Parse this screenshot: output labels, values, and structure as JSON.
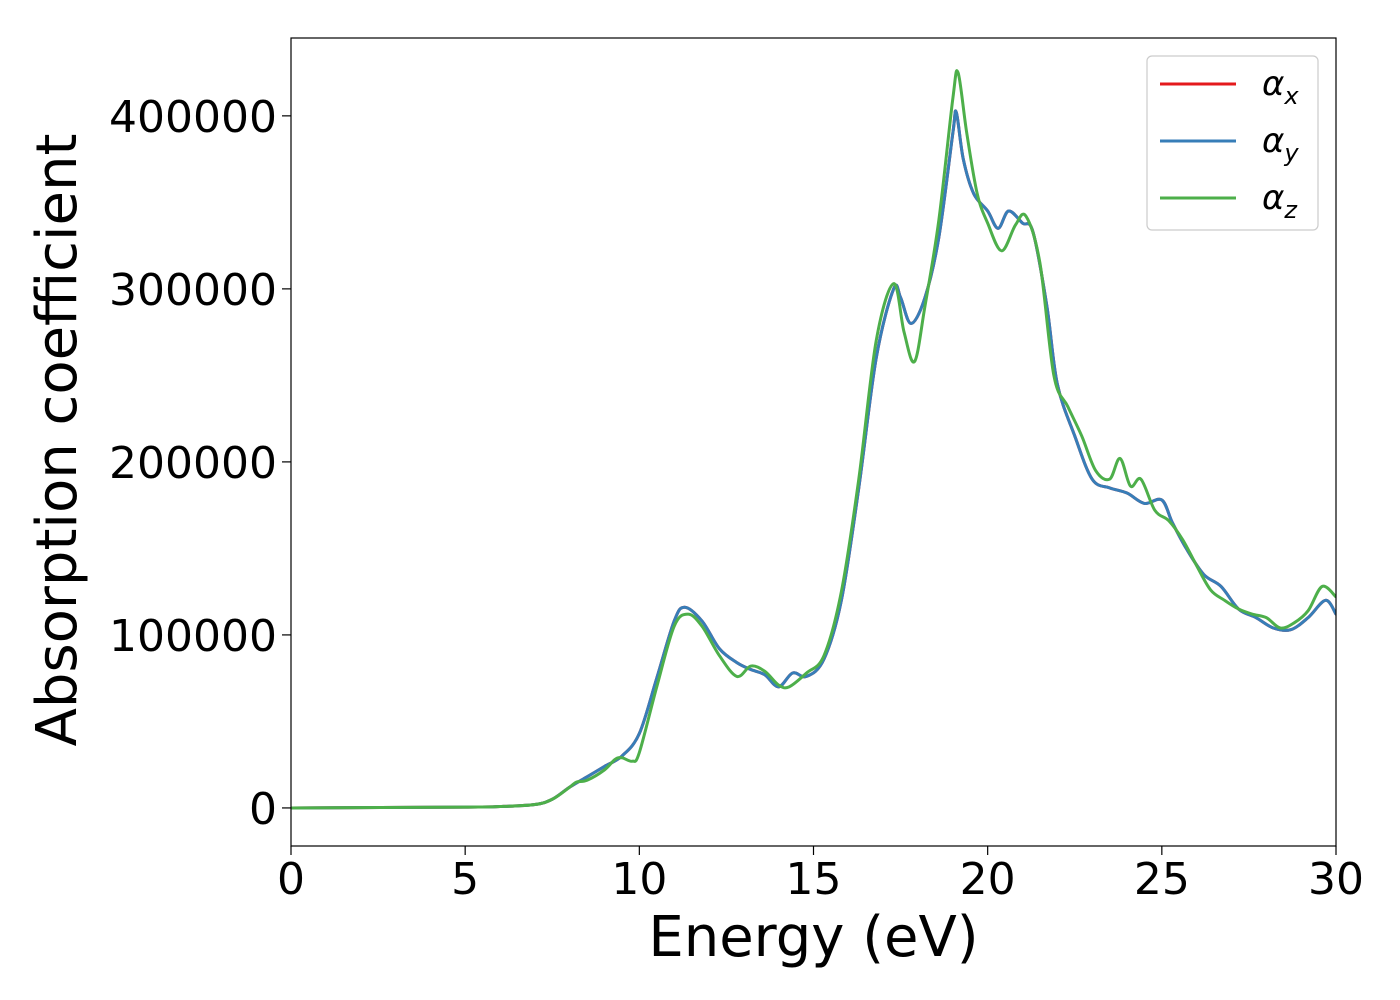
{
  "chart_data": {
    "type": "line",
    "title": "",
    "xlabel": "Energy (eV)",
    "ylabel": "Absorption coefficient",
    "xlim": [
      0,
      30
    ],
    "ylim": [
      -22000,
      445000
    ],
    "xticks": [
      0,
      5,
      10,
      15,
      20,
      25,
      30
    ],
    "xtick_labels": [
      "0",
      "5",
      "10",
      "15",
      "20",
      "25",
      "30"
    ],
    "yticks": [
      0,
      100000,
      200000,
      300000,
      400000
    ],
    "ytick_labels": [
      "0",
      "100000",
      "200000",
      "300000",
      "400000"
    ],
    "grid": false,
    "legend_position": "top-right",
    "series": [
      {
        "name": "αx",
        "legend_base": "α",
        "legend_sub": "x",
        "color": "#e41a1c",
        "x": [
          0,
          5,
          6,
          7,
          7.5,
          8,
          8.5,
          9,
          9.5,
          10,
          10.5,
          11,
          11.3,
          11.8,
          12.3,
          12.8,
          13.2,
          13.6,
          14,
          14.4,
          14.8,
          15.3,
          15.8,
          16.3,
          16.8,
          17.3,
          17.5,
          17.8,
          18.2,
          18.6,
          19.0,
          19.1,
          19.3,
          19.6,
          20.0,
          20.3,
          20.6,
          21.0,
          21.3,
          21.7,
          22.0,
          22.5,
          23.0,
          23.5,
          24.0,
          24.5,
          25.0,
          25.3,
          25.7,
          26.2,
          26.7,
          27.2,
          27.7,
          28.2,
          28.7,
          29.2,
          29.7,
          30.0
        ],
        "y": [
          0,
          500,
          800,
          2000,
          5000,
          12000,
          18000,
          24000,
          30000,
          43000,
          75000,
          108000,
          116000,
          108000,
          92000,
          84000,
          80000,
          77000,
          70000,
          78000,
          76000,
          86000,
          120000,
          185000,
          260000,
          300000,
          295000,
          280000,
          295000,
          330000,
          390000,
          402000,
          375000,
          355000,
          345000,
          335000,
          345000,
          338000,
          333000,
          290000,
          245000,
          215000,
          190000,
          185000,
          182000,
          176000,
          178000,
          165000,
          150000,
          135000,
          128000,
          115000,
          110000,
          104000,
          103000,
          110000,
          120000,
          112000
        ]
      },
      {
        "name": "αy",
        "legend_base": "α",
        "legend_sub": "y",
        "color": "#377eb8",
        "x": [
          0,
          5,
          6,
          7,
          7.5,
          8,
          8.5,
          9,
          9.5,
          10,
          10.5,
          11,
          11.3,
          11.8,
          12.3,
          12.8,
          13.2,
          13.6,
          14,
          14.4,
          14.8,
          15.3,
          15.8,
          16.3,
          16.8,
          17.3,
          17.5,
          17.8,
          18.2,
          18.6,
          19.0,
          19.1,
          19.3,
          19.6,
          20.0,
          20.3,
          20.6,
          21.0,
          21.3,
          21.7,
          22.0,
          22.5,
          23.0,
          23.5,
          24.0,
          24.5,
          25.0,
          25.3,
          25.7,
          26.2,
          26.7,
          27.2,
          27.7,
          28.2,
          28.7,
          29.2,
          29.7,
          30.0
        ],
        "y": [
          0,
          500,
          800,
          2000,
          5000,
          12000,
          18000,
          24000,
          30000,
          43000,
          75000,
          108000,
          116000,
          108000,
          92000,
          84000,
          80000,
          77000,
          70000,
          78000,
          76000,
          86000,
          120000,
          185000,
          260000,
          300000,
          295000,
          280000,
          295000,
          330000,
          390000,
          402000,
          375000,
          355000,
          345000,
          335000,
          345000,
          338000,
          333000,
          290000,
          245000,
          215000,
          190000,
          185000,
          182000,
          176000,
          178000,
          165000,
          150000,
          135000,
          128000,
          115000,
          110000,
          104000,
          103000,
          110000,
          120000,
          112000
        ]
      },
      {
        "name": "αz",
        "legend_base": "α",
        "legend_sub": "z",
        "color": "#4daf4a",
        "x": [
          0,
          5,
          6,
          7,
          7.5,
          8,
          8.2,
          8.5,
          9,
          9.3,
          9.5,
          9.8,
          10,
          10.5,
          11,
          11.4,
          11.8,
          12.3,
          12.8,
          13.2,
          13.6,
          14,
          14.3,
          14.8,
          15.3,
          15.8,
          16.3,
          16.8,
          17.3,
          17.6,
          17.9,
          18.2,
          18.6,
          19.0,
          19.15,
          19.4,
          19.7,
          20.0,
          20.4,
          20.8,
          21.1,
          21.5,
          21.9,
          22.3,
          22.7,
          23.1,
          23.5,
          23.8,
          24.1,
          24.4,
          24.8,
          25.2,
          25.6,
          26.0,
          26.4,
          26.8,
          27.2,
          27.6,
          28.0,
          28.4,
          28.8,
          29.2,
          29.6,
          30.0
        ],
        "y": [
          0,
          500,
          800,
          2000,
          5000,
          12000,
          15000,
          16000,
          22000,
          28000,
          29000,
          27000,
          32000,
          70000,
          105000,
          112000,
          105000,
          88000,
          76000,
          82000,
          79000,
          71000,
          70000,
          78000,
          88000,
          125000,
          190000,
          270000,
          303000,
          275000,
          258000,
          290000,
          340000,
          410000,
          425000,
          390000,
          355000,
          338000,
          322000,
          337000,
          342000,
          315000,
          250000,
          232000,
          215000,
          195000,
          190000,
          202000,
          186000,
          190000,
          172000,
          166000,
          155000,
          140000,
          126000,
          120000,
          115000,
          112000,
          110000,
          104000,
          107000,
          114000,
          128000,
          122000
        ]
      }
    ]
  }
}
